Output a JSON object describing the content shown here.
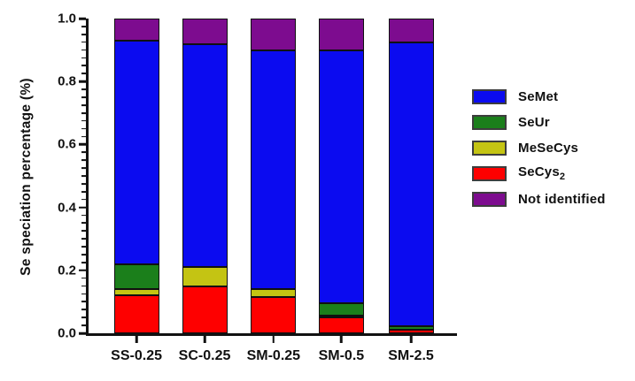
{
  "chart_data": {
    "type": "bar",
    "stacked": true,
    "title": "",
    "xlabel": "",
    "ylabel": "Se speciation percentage (%)",
    "ylim": [
      0,
      1.0
    ],
    "y_major_step": 0.2,
    "y_minor_step": 0.025,
    "y_tick_labels": [
      "0.0",
      "0.2",
      "0.4",
      "0.6",
      "0.8",
      "1.0"
    ],
    "grid": false,
    "legend_position": "right",
    "categories": [
      "SS-0.25",
      "SC-0.25",
      "SM-0.25",
      "SM-0.5",
      "SM-2.5"
    ],
    "series": [
      {
        "name": "SeCys2",
        "label": "SeCys",
        "label_subscript": "2",
        "color": "#fe0000",
        "values": [
          0.12,
          0.15,
          0.115,
          0.05,
          0.012
        ]
      },
      {
        "name": "MeSeCys",
        "label": "MeSeCys",
        "color": "#c4c413",
        "values": [
          0.02,
          0.06,
          0.025,
          0.007,
          0
        ]
      },
      {
        "name": "SeUr",
        "label": "SeUr",
        "color": "#1b7f1b",
        "values": [
          0.08,
          0,
          0,
          0.038,
          0.01
        ]
      },
      {
        "name": "SeMet",
        "label": "SeMet",
        "color": "#0b0bf0",
        "values": [
          0.71,
          0.71,
          0.76,
          0.805,
          0.903
        ]
      },
      {
        "name": "Not identified",
        "label": "Not identified",
        "color": "#7d0c8f",
        "values": [
          0.07,
          0.08,
          0.1,
          0.1,
          0.075
        ]
      }
    ],
    "legend_order": [
      "SeMet",
      "SeUr",
      "MeSeCys",
      "SeCys2",
      "Not identified"
    ],
    "axis_color": "#111111"
  }
}
